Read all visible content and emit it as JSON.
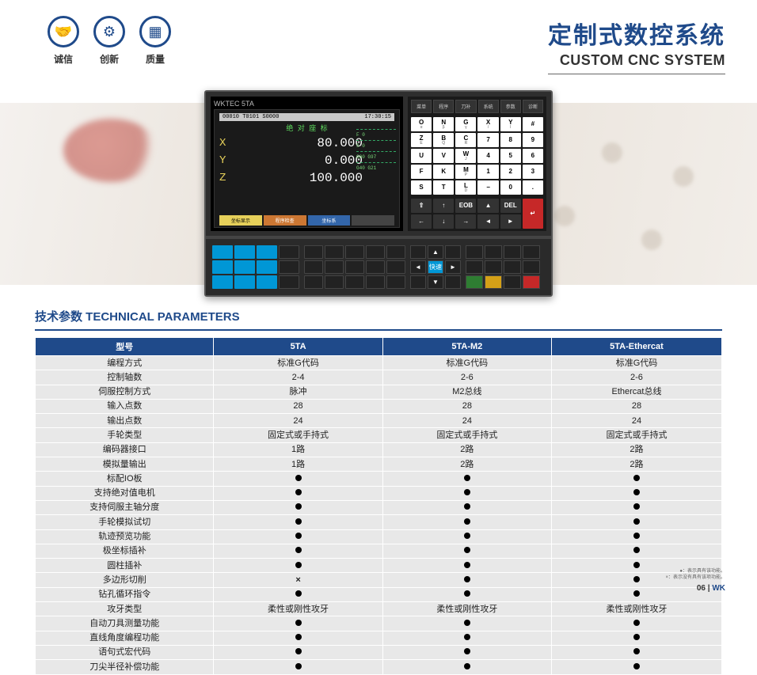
{
  "header": {
    "icons": [
      {
        "name": "handshake-icon",
        "glyph": "🤝",
        "label": "诚信"
      },
      {
        "name": "gear-icon",
        "glyph": "⚙",
        "label": "创新"
      },
      {
        "name": "chip-icon",
        "glyph": "▦",
        "label": "质量"
      }
    ],
    "title_cn": "定制式数控系统",
    "title_en": "CUSTOM CNC SYSTEM"
  },
  "device": {
    "brand": "WKTEC 5TA",
    "screen": {
      "topbar_left": "00010  T0101  S0000",
      "topbar_right": "17:30:15",
      "title": "绝 对 座 标",
      "axes": [
        {
          "axis": "X",
          "value": "80.000"
        },
        {
          "axis": "Y",
          "value": "0.000"
        },
        {
          "axis": "Z",
          "value": "100.000"
        }
      ],
      "side": [
        "F 0",
        "S 0",
        "G00 G97",
        "G40 G21"
      ],
      "tabs": [
        {
          "text": "坐标显示",
          "cls": "y"
        },
        {
          "text": "程序检查",
          "cls": "r"
        },
        {
          "text": "坐标系",
          "cls": "b"
        },
        {
          "text": "",
          "cls": ""
        }
      ]
    },
    "keypad_tabs": [
      "菜单",
      "程序",
      "刀补",
      "系统",
      "参数",
      "诊断"
    ],
    "keys_main": [
      {
        "t": "O",
        "s": "α"
      },
      {
        "t": "N",
        "s": "β"
      },
      {
        "t": "G",
        "s": "γ"
      },
      {
        "t": "X",
        "s": "/"
      },
      {
        "t": "Y",
        "s": "I"
      },
      {
        "t": "#",
        "s": ""
      },
      {
        "t": "Z",
        "s": "E"
      },
      {
        "t": "B",
        "s": "Q"
      },
      {
        "t": "C",
        "s": "R"
      },
      {
        "t": "7",
        "s": ""
      },
      {
        "t": "8",
        "s": ""
      },
      {
        "t": "9",
        "s": ""
      },
      {
        "t": "U",
        "s": ""
      },
      {
        "t": "V",
        "s": ""
      },
      {
        "t": "W",
        "s": "J"
      },
      {
        "t": "4",
        "s": ""
      },
      {
        "t": "5",
        "s": ""
      },
      {
        "t": "6",
        "s": ""
      },
      {
        "t": "F",
        "s": ""
      },
      {
        "t": "K",
        "s": ""
      },
      {
        "t": "M",
        "s": "P"
      },
      {
        "t": "1",
        "s": ""
      },
      {
        "t": "2",
        "s": ""
      },
      {
        "t": "3",
        "s": ""
      },
      {
        "t": "S",
        "s": ""
      },
      {
        "t": "T",
        "s": ""
      },
      {
        "t": "L",
        "s": "D"
      },
      {
        "t": "−",
        "s": ""
      },
      {
        "t": "0",
        "s": ""
      },
      {
        "t": ".",
        "s": ""
      }
    ],
    "keys_bottom": [
      {
        "t": "⇧",
        "cls": "dark"
      },
      {
        "t": "↑",
        "cls": "dark"
      },
      {
        "t": "EOB",
        "cls": "dark"
      },
      {
        "t": "▲",
        "cls": "dark"
      },
      {
        "t": "DEL",
        "cls": "dark"
      },
      {
        "t": "↵",
        "cls": "red tall"
      },
      {
        "t": "←",
        "cls": "dark"
      },
      {
        "t": "↓",
        "cls": "dark"
      },
      {
        "t": "→",
        "cls": "dark"
      },
      {
        "t": "◄",
        "cls": "dark"
      },
      {
        "t": "►",
        "cls": "dark"
      }
    ]
  },
  "section_title": "技术参数 TECHNICAL PARAMETERS",
  "table": {
    "columns": [
      "型号",
      "5TA",
      "5TA-M2",
      "5TA-Ethercat"
    ],
    "col_widths": [
      "26%",
      "24.6%",
      "24.6%",
      "24.8%"
    ],
    "rows": [
      {
        "label": "编程方式",
        "cells": [
          "标准G代码",
          "标准G代码",
          "标准G代码"
        ]
      },
      {
        "label": "控制轴数",
        "cells": [
          "2-4",
          "2-6",
          "2-6"
        ]
      },
      {
        "label": "伺服控制方式",
        "cells": [
          "脉冲",
          "M2总线",
          "Ethercat总线"
        ]
      },
      {
        "label": "输入点数",
        "cells": [
          "28",
          "28",
          "28"
        ]
      },
      {
        "label": "输出点数",
        "cells": [
          "24",
          "24",
          "24"
        ]
      },
      {
        "label": "手轮类型",
        "cells": [
          "固定式或手持式",
          "固定式或手持式",
          "固定式或手持式"
        ]
      },
      {
        "label": "编码器接口",
        "cells": [
          "1路",
          "2路",
          "2路"
        ]
      },
      {
        "label": "模拟量输出",
        "cells": [
          "1路",
          "2路",
          "2路"
        ]
      },
      {
        "label": "标配IO板",
        "cells": [
          "●",
          "●",
          "●"
        ]
      },
      {
        "label": "支持绝对值电机",
        "cells": [
          "●",
          "●",
          "●"
        ]
      },
      {
        "label": "支持伺服主轴分度",
        "cells": [
          "●",
          "●",
          "●"
        ]
      },
      {
        "label": "手轮模拟试切",
        "cells": [
          "●",
          "●",
          "●"
        ]
      },
      {
        "label": "轨迹预览功能",
        "cells": [
          "●",
          "●",
          "●"
        ]
      },
      {
        "label": "极坐标插补",
        "cells": [
          "●",
          "●",
          "●"
        ]
      },
      {
        "label": "圆柱插补",
        "cells": [
          "●",
          "●",
          "●"
        ]
      },
      {
        "label": "多边形切削",
        "cells": [
          "×",
          "●",
          "●"
        ]
      },
      {
        "label": "钻孔循环指令",
        "cells": [
          "●",
          "●",
          "●"
        ]
      },
      {
        "label": "攻牙类型",
        "cells": [
          "柔性或刚性攻牙",
          "柔性或刚性攻牙",
          "柔性或刚性攻牙"
        ]
      },
      {
        "label": "自动刀具测量功能",
        "cells": [
          "●",
          "●",
          "●"
        ]
      },
      {
        "label": "直线角度编程功能",
        "cells": [
          "●",
          "●",
          "●"
        ]
      },
      {
        "label": "语句式宏代码",
        "cells": [
          "●",
          "●",
          "●"
        ]
      },
      {
        "label": "刀尖半径补偿功能",
        "cells": [
          "●",
          "●",
          "●"
        ]
      }
    ]
  },
  "footnote": [
    "●：表示具有该功能。",
    "×：表示没有具有该项功能。"
  ],
  "footer": {
    "page": "06",
    "sep": " | ",
    "brand": "WK"
  }
}
